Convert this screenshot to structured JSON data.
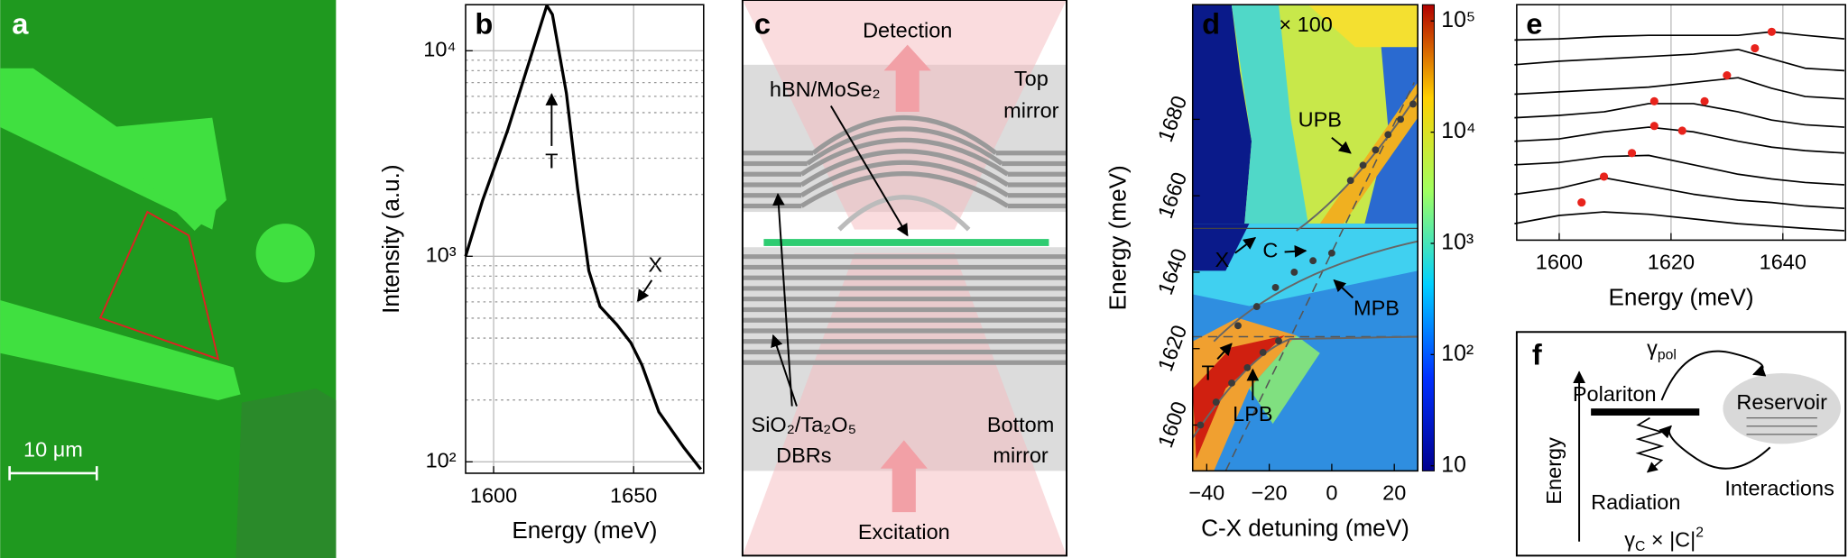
{
  "figure": {
    "a": {
      "panel": "a",
      "scale_bar": "10 μm"
    },
    "c": {
      "panel": "c",
      "detection": "Detection",
      "sample": "hBN/MoSe₂",
      "top_mirror": [
        "Top",
        "mirror"
      ],
      "dbr": [
        "SiO₂/Ta₂O₅",
        "DBRs"
      ],
      "bottom_mirror": [
        "Bottom",
        "mirror"
      ],
      "excitation": "Excitation"
    },
    "f": {
      "panel": "f",
      "polariton": "Polariton",
      "reservoir": "Reservoir",
      "energy": "Energy",
      "radiation": "Radiation",
      "interactions": "Interactions",
      "gamma_pol": [
        "γ",
        "pol"
      ],
      "gamma_c": [
        "γ",
        "C",
        " × |C|",
        "2"
      ]
    }
  },
  "chart_data": [
    {
      "panel": "b",
      "type": "line",
      "x_label": "Energy (meV)",
      "y_label": "Intensity (a.u.)",
      "x": [
        1590,
        1596,
        1605,
        1613,
        1619,
        1621,
        1626,
        1630,
        1634,
        1638,
        1644,
        1649,
        1653,
        1659,
        1668,
        1674
      ],
      "series": [
        {
          "color": "#000000",
          "values": [
            1000,
            1860,
            4100,
            9100,
            16600,
            15000,
            6200,
            2130,
            850,
            570,
            465,
            380,
            295,
            175,
            117,
            92
          ]
        }
      ],
      "xlim": [
        1590,
        1675
      ],
      "xticks": [
        1600,
        1650
      ],
      "ylim": [
        88,
        16750
      ],
      "ylog": true,
      "yticks": [
        {
          "value": 100,
          "label": "10²"
        },
        {
          "value": 1000,
          "label": "10³"
        },
        {
          "value": 10000,
          "label": "10⁴"
        }
      ],
      "minor_yticks": [
        200,
        300,
        400,
        500,
        600,
        700,
        800,
        900,
        2000,
        3000,
        4000,
        5000,
        6000,
        7000,
        8000,
        9000
      ],
      "grid": true,
      "annotations": [
        "T",
        "X"
      ]
    },
    {
      "panel": "d",
      "type": "scatter",
      "x_label": "C-X detuning (meV)",
      "y_label": "Energy (meV)",
      "series": [
        {
          "name": "UPB",
          "color": "#3a3a3a",
          "x": [
            6,
            10,
            14,
            18,
            22,
            26
          ],
          "values": [
            1664,
            1668,
            1672,
            1676,
            1680,
            1684
          ]
        },
        {
          "name": "MPB",
          "color": "#3a3a3a",
          "x": [
            -30,
            -24,
            -18,
            -12,
            -6,
            0
          ],
          "values": [
            1626,
            1631,
            1636,
            1640,
            1643,
            1645
          ]
        },
        {
          "name": "LPB",
          "color": "#3a3a3a",
          "x": [
            -42,
            -37,
            -32,
            -27,
            -22,
            -17
          ],
          "values": [
            1600,
            1606,
            1611,
            1615,
            1619,
            1622
          ]
        }
      ],
      "xlim": [
        -44.5,
        27.5
      ],
      "xticks": [
        {
          "value": -40,
          "label": "−40"
        },
        {
          "value": -20,
          "label": "−20"
        },
        0,
        20
      ],
      "ylim": [
        1588,
        1710
      ],
      "yticks": [
        1600,
        1620,
        1640,
        1660,
        1680
      ],
      "grid": false,
      "colorbar": {
        "lim": [
          9,
          140000
        ],
        "log": true,
        "ticks": [
          10,
          {
            "value": 100,
            "label": "10²"
          },
          {
            "value": 1000,
            "label": "10³"
          },
          {
            "value": 10000,
            "label": "10⁴"
          },
          {
            "value": 100000,
            "label": "10⁵"
          }
        ]
      },
      "annotations": [
        "× 100",
        "X",
        "C",
        "T"
      ]
    },
    {
      "panel": "e",
      "type": "line",
      "x_label": "Energy (meV)",
      "x": [
        1592,
        1600,
        1608,
        1616,
        1624,
        1632,
        1638,
        1644,
        1651
      ],
      "series": [
        {
          "color": "#000000",
          "values": [
            8.5,
            8.55,
            8.65,
            8.7,
            8.7,
            8.7,
            8.85,
            8.7,
            8.55
          ],
          "peaks": {
            "x": [
              1638
            ],
            "values": [
              8.85
            ]
          }
        },
        {
          "color": "#000000",
          "values": [
            7.45,
            7.6,
            7.7,
            7.8,
            7.9,
            8.1,
            7.7,
            7.3,
            7.2
          ],
          "peaks": {
            "x": [
              1635
            ],
            "values": [
              8.15
            ]
          }
        },
        {
          "color": "#000000",
          "values": [
            6.2,
            6.3,
            6.4,
            6.5,
            6.7,
            6.9,
            6.45,
            6.1,
            6.0
          ],
          "peaks": {
            "x": [
              1630
            ],
            "values": [
              7.0
            ]
          }
        },
        {
          "color": "#000000",
          "values": [
            5.2,
            5.3,
            5.45,
            5.8,
            5.8,
            5.45,
            5.1,
            4.9,
            4.8
          ],
          "peaks": {
            "x": [
              1617,
              1626
            ],
            "values": [
              5.9,
              5.9
            ]
          }
        },
        {
          "color": "#000000",
          "values": [
            4.2,
            4.3,
            4.6,
            4.8,
            4.6,
            4.2,
            3.95,
            3.8,
            3.7
          ],
          "peaks": {
            "x": [
              1617,
              1622
            ],
            "values": [
              4.85,
              4.65
            ]
          }
        },
        {
          "color": "#000000",
          "values": [
            3.2,
            3.3,
            3.55,
            3.6,
            3.2,
            2.8,
            2.6,
            2.45,
            2.35
          ],
          "peaks": {
            "x": [
              1613
            ],
            "values": [
              3.7
            ]
          }
        },
        {
          "color": "#000000",
          "values": [
            1.95,
            2.2,
            2.65,
            2.3,
            1.95,
            1.7,
            1.6,
            1.45,
            1.35
          ],
          "peaks": {
            "x": [
              1608
            ],
            "values": [
              2.7
            ]
          }
        },
        {
          "color": "#000000",
          "values": [
            0.7,
            1.05,
            1.2,
            1.1,
            0.9,
            0.7,
            0.6,
            0.5,
            0.4
          ],
          "peaks": {
            "x": [
              1604
            ],
            "values": [
              1.6
            ]
          }
        }
      ],
      "peak_color": "#e8231c",
      "xlim": [
        1592.4,
        1651.2
      ],
      "xticks": [
        1600,
        1620,
        1640
      ],
      "ylim": [
        0,
        10
      ],
      "grid": true
    }
  ]
}
